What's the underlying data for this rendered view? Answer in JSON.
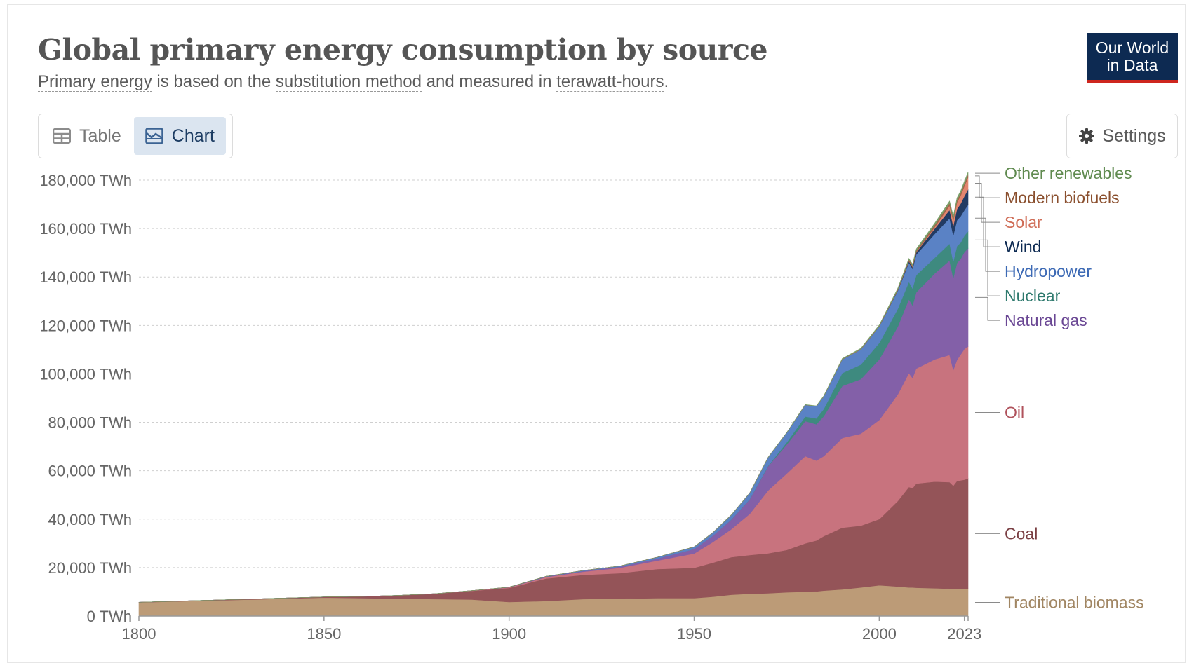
{
  "header": {
    "title": "Global primary energy consumption by source",
    "subtitle": {
      "term1": "Primary energy",
      "text1": " is based on the ",
      "term2": "substitution method",
      "text2": " and measured in ",
      "term3": "terawatt-hours",
      "text3": "."
    },
    "logo": {
      "line1": "Our World",
      "line2": "in Data"
    }
  },
  "controls": {
    "table_label": "Table",
    "chart_label": "Chart",
    "settings_label": "Settings",
    "active_tab": "Chart"
  },
  "chart_data": {
    "type": "area",
    "stacked": true,
    "title": "Global primary energy consumption by source",
    "ylabel": "",
    "xlabel": "",
    "y_unit": "TWh",
    "xlim": [
      1800,
      2024
    ],
    "ylim": [
      0,
      180000
    ],
    "x_ticks": [
      1800,
      1850,
      1900,
      1950,
      2000,
      2023
    ],
    "y_ticks": [
      0,
      20000,
      40000,
      60000,
      80000,
      100000,
      120000,
      140000,
      160000,
      180000
    ],
    "y_tick_labels": [
      "0 TWh",
      "20,000 TWh",
      "40,000 TWh",
      "60,000 TWh",
      "80,000 TWh",
      "100,000 TWh",
      "120,000 TWh",
      "140,000 TWh",
      "160,000 TWh",
      "180,000 TWh"
    ],
    "grid": "horizontal-dashed",
    "legend": "labels at right end of series",
    "x": [
      1800,
      1850,
      1860,
      1870,
      1880,
      1890,
      1900,
      1910,
      1920,
      1930,
      1940,
      1950,
      1955,
      1960,
      1965,
      1970,
      1975,
      1980,
      1983,
      1985,
      1990,
      1995,
      2000,
      2005,
      2008,
      2009,
      2010,
      2015,
      2019,
      2020,
      2021,
      2022,
      2023,
      2024
    ],
    "series": [
      {
        "name": "Traditional biomass",
        "color": "#bc9b77",
        "label_color": "#a18663",
        "values": [
          5600,
          7600,
          7400,
          7200,
          7000,
          6800,
          5800,
          6200,
          7000,
          7200,
          7400,
          7400,
          8000,
          8800,
          9200,
          9400,
          9800,
          10000,
          10200,
          10500,
          11000,
          11800,
          12700,
          12200,
          11800,
          11800,
          11700,
          11500,
          11300,
          11300,
          11300,
          11300,
          11300,
          11300
        ]
      },
      {
        "name": "Coal",
        "color": "#945458",
        "label_color": "#7a3f43",
        "values": [
          100,
          300,
          700,
          1300,
          2200,
          3600,
          5800,
          9300,
          10000,
          10500,
          12000,
          12500,
          14000,
          15500,
          16000,
          16500,
          17500,
          20000,
          21000,
          22500,
          25500,
          25500,
          27300,
          35300,
          41500,
          41000,
          43000,
          44000,
          44000,
          42500,
          44500,
          44700,
          45000,
          45500
        ]
      },
      {
        "name": "Oil",
        "color": "#c8737e",
        "label_color": "#b0525c",
        "values": [
          0,
          0,
          0,
          0,
          30,
          100,
          250,
          600,
          1300,
          2200,
          3500,
          5900,
          8500,
          11500,
          17000,
          26000,
          31500,
          36000,
          33000,
          33000,
          37000,
          38000,
          41000,
          44000,
          47000,
          45500,
          47500,
          50500,
          52500,
          47800,
          50000,
          52000,
          54000,
          54500
        ]
      },
      {
        "name": "Natural gas",
        "color": "#8360a8",
        "label_color": "#6a4794",
        "values": [
          0,
          0,
          0,
          0,
          0,
          0,
          80,
          200,
          300,
          500,
          800,
          1900,
          2600,
          4000,
          6000,
          10000,
          12000,
          14500,
          15000,
          16500,
          21500,
          22500,
          25000,
          28000,
          30500,
          30000,
          31500,
          35500,
          39000,
          38000,
          40000,
          39500,
          40000,
          40500
        ]
      },
      {
        "name": "Nuclear",
        "color": "#3e8a7f",
        "label_color": "#2f7a6e",
        "values": [
          0,
          0,
          0,
          0,
          0,
          0,
          0,
          0,
          0,
          0,
          0,
          0,
          0,
          10,
          80,
          200,
          900,
          1900,
          2400,
          3000,
          5300,
          6000,
          6800,
          7300,
          7200,
          7000,
          7100,
          6500,
          7000,
          6800,
          7000,
          6700,
          6800,
          7000
        ]
      },
      {
        "name": "Hydropower",
        "color": "#5a82c5",
        "label_color": "#3d6ab5",
        "values": [
          0,
          0,
          0,
          0,
          0,
          0,
          20,
          100,
          200,
          300,
          600,
          900,
          1300,
          1900,
          2500,
          3500,
          4000,
          4800,
          5000,
          5200,
          5700,
          6300,
          6800,
          7500,
          8000,
          8100,
          8500,
          9800,
          10500,
          10800,
          10700,
          10900,
          10500,
          11000
        ]
      },
      {
        "name": "Wind",
        "color": "#223b63",
        "label_color": "#0d2a52",
        "values": [
          0,
          0,
          0,
          0,
          0,
          0,
          0,
          0,
          0,
          0,
          0,
          0,
          0,
          0,
          0,
          0,
          0,
          0,
          0,
          0,
          10,
          20,
          80,
          280,
          550,
          700,
          900,
          2200,
          3400,
          4000,
          4600,
          5200,
          5800,
          6400
        ]
      },
      {
        "name": "Solar",
        "color": "#e3866f",
        "label_color": "#d06e58",
        "values": [
          0,
          0,
          0,
          0,
          0,
          0,
          0,
          0,
          0,
          0,
          0,
          0,
          0,
          0,
          0,
          0,
          0,
          0,
          0,
          0,
          0,
          0,
          5,
          10,
          30,
          50,
          80,
          650,
          1800,
          2200,
          2700,
          3300,
          4100,
          5000
        ]
      },
      {
        "name": "Modern biofuels",
        "color": "#a2664a",
        "label_color": "#8a4f2e",
        "values": [
          0,
          0,
          0,
          0,
          0,
          0,
          0,
          0,
          0,
          0,
          0,
          0,
          0,
          0,
          0,
          0,
          0,
          30,
          60,
          80,
          120,
          140,
          180,
          300,
          600,
          650,
          700,
          900,
          1000,
          950,
          1000,
          1050,
          1100,
          1150
        ]
      },
      {
        "name": "Other renewables",
        "color": "#7aa06a",
        "label_color": "#5f8a4f",
        "values": [
          0,
          0,
          0,
          0,
          0,
          0,
          0,
          0,
          0,
          0,
          0,
          0,
          0,
          10,
          20,
          40,
          60,
          100,
          120,
          150,
          220,
          300,
          360,
          450,
          500,
          520,
          560,
          700,
          850,
          870,
          900,
          920,
          950,
          980
        ]
      }
    ]
  }
}
